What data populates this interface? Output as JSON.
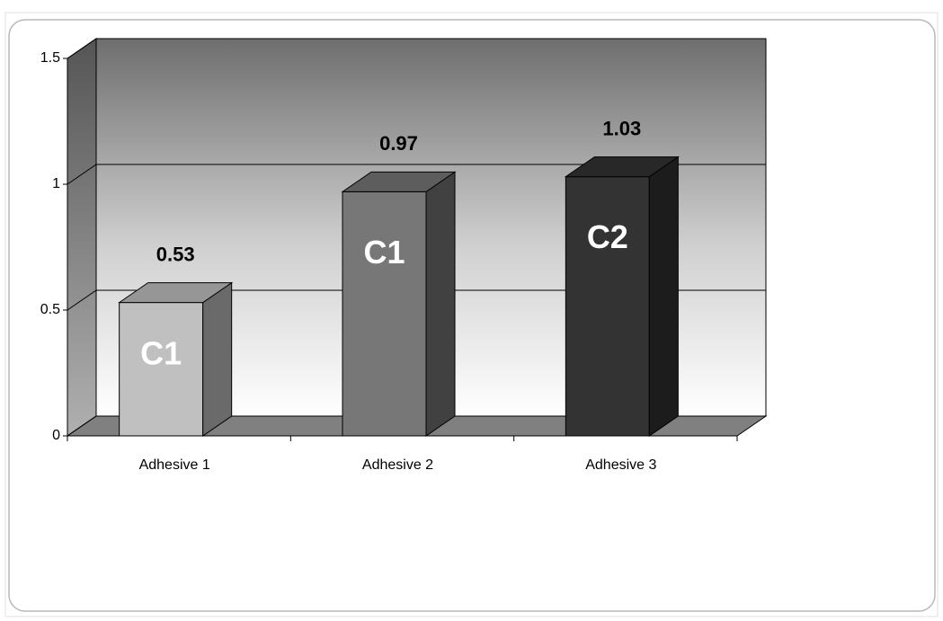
{
  "chart_data": {
    "type": "bar3d",
    "categories": [
      "Adhesive 1",
      "Adhesive 2",
      "Adhesive 3"
    ],
    "values": [
      0.53,
      0.97,
      1.03
    ],
    "bar_labels": [
      "C1",
      "C1",
      "C2"
    ],
    "colors": [
      "#c0c0c0",
      "#777777",
      "#333333"
    ],
    "ylim": [
      0,
      1.5
    ],
    "yticks": [
      0,
      0.5,
      1,
      1.5
    ],
    "grid": true
  }
}
